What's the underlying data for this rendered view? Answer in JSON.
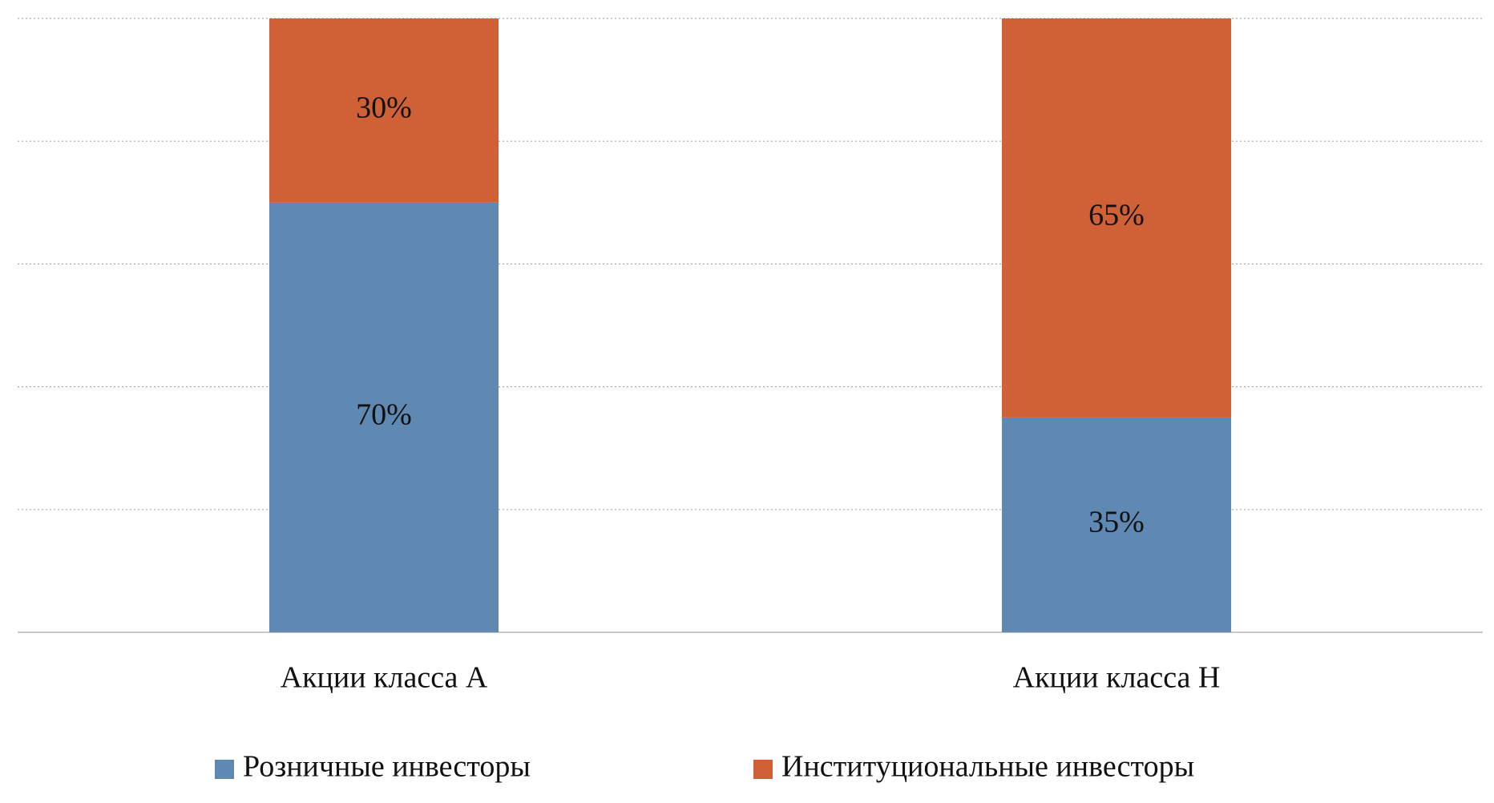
{
  "chart_data": {
    "type": "stacked_bar",
    "categories": [
      "Акции класса A",
      "Акции класса H"
    ],
    "series": [
      {
        "name": "Розничные инвесторы",
        "color": "#5f88b3",
        "values": [
          70,
          35
        ],
        "value_labels": [
          "70%",
          "35%"
        ]
      },
      {
        "name": "Институциональные инвесторы",
        "color": "#d06035",
        "values": [
          30,
          65
        ],
        "value_labels": [
          "30%",
          "65%"
        ]
      }
    ],
    "ylim": [
      0,
      100
    ],
    "yticks": [
      0,
      20,
      40,
      60,
      80,
      100
    ],
    "grid": true,
    "legend": "bottom"
  }
}
